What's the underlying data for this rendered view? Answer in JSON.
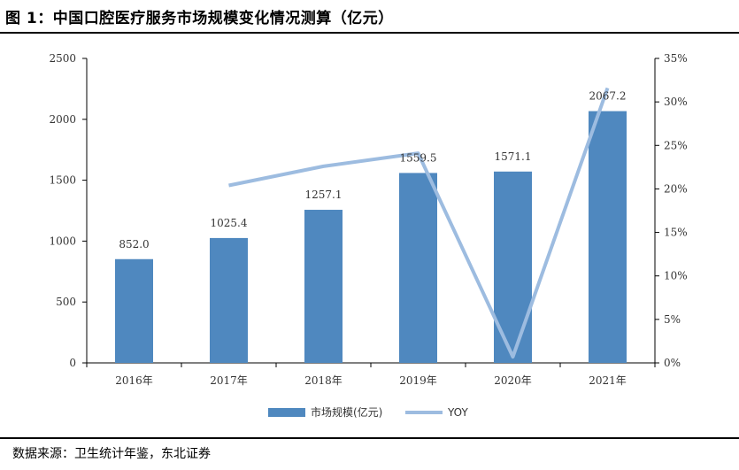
{
  "header": {
    "title": "图 1：中国口腔医疗服务市场规模变化情况测算（亿元）"
  },
  "footer": {
    "source": "数据来源：卫生统计年鉴，东北证券"
  },
  "colors": {
    "bar": "#4F88BF",
    "line": "#9DBCE0",
    "axis": "#000000"
  },
  "chart_data": {
    "type": "bar",
    "categories": [
      "2016年",
      "2017年",
      "2018年",
      "2019年",
      "2020年",
      "2021年"
    ],
    "series": [
      {
        "name": "市场规模(亿元)",
        "type": "bar",
        "axis": "left",
        "values": [
          852.0,
          1025.4,
          1257.1,
          1559.5,
          1571.1,
          2067.2
        ],
        "labels": [
          "852.0",
          "1025.4",
          "1257.1",
          "1559.5",
          "1571.1",
          "2067.2"
        ]
      },
      {
        "name": "YOY",
        "type": "line",
        "axis": "right",
        "values": [
          null,
          20.4,
          22.6,
          24.1,
          0.7,
          31.6
        ]
      }
    ],
    "ylim": [
      0,
      2500
    ],
    "yticks": [
      "0",
      "500",
      "1000",
      "1500",
      "2000",
      "2500"
    ],
    "y2lim": [
      0,
      35
    ],
    "y2ticks": [
      "0%",
      "5%",
      "10%",
      "15%",
      "20%",
      "25%",
      "30%",
      "35%"
    ],
    "legend_position": "bottom-center",
    "grid": false
  }
}
